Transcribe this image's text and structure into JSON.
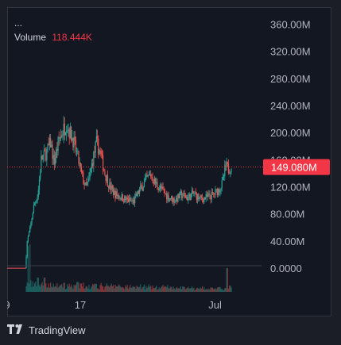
{
  "legend": {
    "ellipsis": "...",
    "volume_label": "Volume",
    "volume_value": "118.444K"
  },
  "footer": {
    "brand": "TradingView",
    "logo": "tradingview-logo-icon"
  },
  "colors": {
    "up": "#26a69a",
    "down": "#ef5350",
    "last_price_tag": "#f23645",
    "grid": "#2a2e39"
  },
  "chart_data": {
    "type": "candlestick",
    "y_axis": {
      "ticks": [
        "360.00M",
        "320.00M",
        "280.00M",
        "240.00M",
        "200.00M",
        "160.00M",
        "120.00M",
        "80.00M",
        "40.00M",
        "0.0000"
      ],
      "tick_values": [
        360,
        320,
        280,
        240,
        200,
        160,
        120,
        80,
        40,
        0
      ],
      "ylim": [
        -35,
        385
      ],
      "unit": "M"
    },
    "x_axis": {
      "ticks": [
        "9",
        "17",
        "Jul"
      ],
      "tick_positions": [
        0,
        11.5,
        32.7
      ],
      "xlim": [
        0,
        40
      ]
    },
    "last_price": {
      "label": "149.080M",
      "value": 149.08
    },
    "price_path": [
      [
        0,
        0
      ],
      [
        3.0,
        0
      ],
      [
        3.3,
        40
      ],
      [
        3.8,
        60
      ],
      [
        4.3,
        90
      ],
      [
        5.0,
        110
      ],
      [
        5.5,
        160
      ],
      [
        6.3,
        170
      ],
      [
        7.0,
        185
      ],
      [
        7.5,
        155
      ],
      [
        8.3,
        190
      ],
      [
        8.8,
        200
      ],
      [
        9.5,
        215
      ],
      [
        10.0,
        200
      ],
      [
        10.5,
        190
      ],
      [
        11.2,
        165
      ],
      [
        11.8,
        140
      ],
      [
        12.5,
        118
      ],
      [
        13.0,
        130
      ],
      [
        13.5,
        155
      ],
      [
        14.2,
        185
      ],
      [
        14.8,
        170
      ],
      [
        15.5,
        140
      ],
      [
        16.3,
        120
      ],
      [
        17.0,
        110
      ],
      [
        18.0,
        105
      ],
      [
        19.0,
        100
      ],
      [
        20.0,
        98
      ],
      [
        21.0,
        115
      ],
      [
        22.0,
        130
      ],
      [
        22.7,
        138
      ],
      [
        23.5,
        125
      ],
      [
        24.5,
        115
      ],
      [
        25.5,
        105
      ],
      [
        26.5,
        100
      ],
      [
        27.5,
        108
      ],
      [
        28.5,
        104
      ],
      [
        29.5,
        110
      ],
      [
        30.5,
        102
      ],
      [
        31.5,
        104
      ],
      [
        32.5,
        108
      ],
      [
        33.3,
        115
      ],
      [
        34.0,
        125
      ],
      [
        34.5,
        150
      ],
      [
        35.0,
        146
      ],
      [
        35.4,
        152
      ]
    ],
    "volume_spikes": [
      [
        3.3,
        58
      ],
      [
        3.6,
        60
      ],
      [
        4.8,
        18
      ],
      [
        5.9,
        18
      ],
      [
        8.6,
        10
      ],
      [
        11.0,
        8
      ],
      [
        14.0,
        10
      ],
      [
        17.0,
        7
      ],
      [
        20.0,
        6
      ],
      [
        23.0,
        5
      ],
      [
        27.0,
        5
      ],
      [
        30.0,
        4
      ],
      [
        34.6,
        30
      ],
      [
        35.0,
        8
      ]
    ]
  }
}
